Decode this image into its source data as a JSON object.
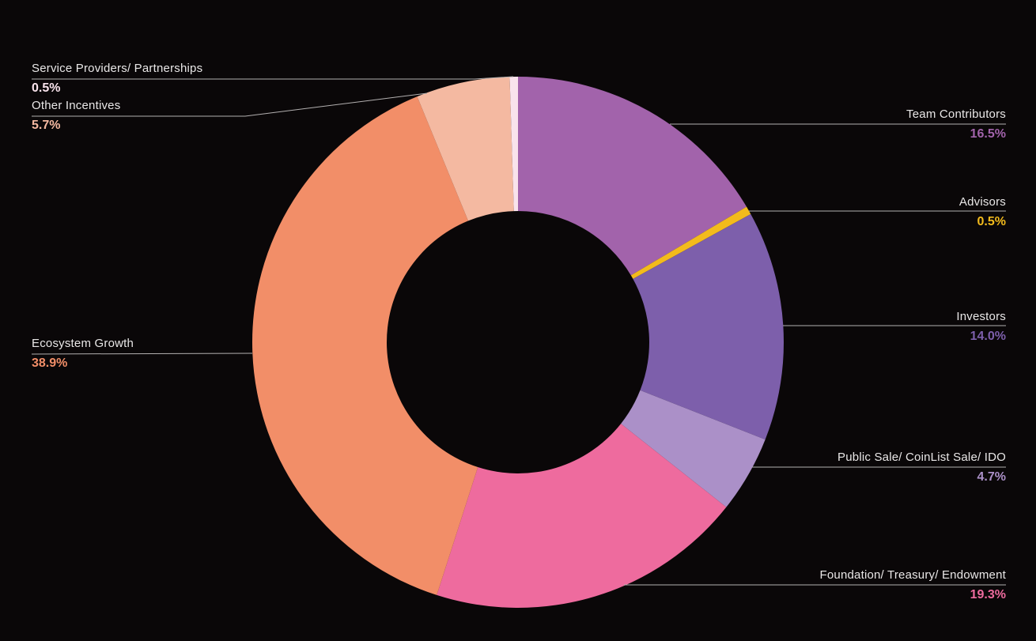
{
  "chart_data": {
    "type": "pie",
    "subtype": "donut",
    "title": "",
    "background_color": "#0a0708",
    "leader_line_color": "#b3b0b0",
    "label_text_color": "#e9e7e7",
    "start_angle_deg_from_top": 0,
    "direction": "clockwise",
    "segments": [
      {
        "name": "Team Contributors",
        "value": 16.5,
        "display": "16.5%",
        "color": "#a263ab"
      },
      {
        "name": "Advisors",
        "value": 0.5,
        "display": "0.5%",
        "color": "#f3bb1c"
      },
      {
        "name": "Investors",
        "value": 14.0,
        "display": "14.0%",
        "color": "#7d5fab"
      },
      {
        "name": "Public Sale/ CoinList Sale/ IDO",
        "value": 4.7,
        "display": "4.7%",
        "color": "#ab90c8"
      },
      {
        "name": "Foundation/ Treasury/ Endowment",
        "value": 19.3,
        "display": "19.3%",
        "color": "#ee6b9e"
      },
      {
        "name": "Ecosystem Growth",
        "value": 38.9,
        "display": "38.9%",
        "color": "#f28e68"
      },
      {
        "name": "Other Incentives",
        "value": 5.7,
        "display": "5.7%",
        "color": "#f4b9a1"
      },
      {
        "name": "Service Providers/ Partnerships",
        "value": 0.5,
        "display": "0.5%",
        "color": "#f9e3ec"
      }
    ]
  }
}
